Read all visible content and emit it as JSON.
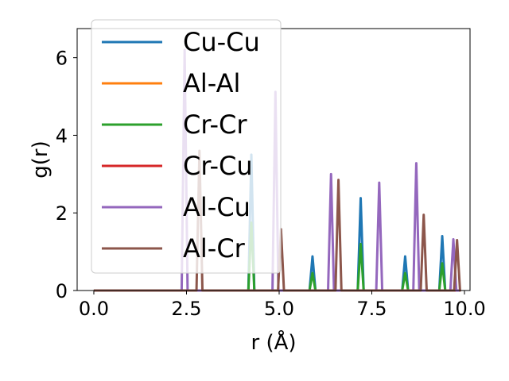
{
  "chart_data": {
    "type": "line",
    "xlabel": "r (Å)",
    "ylabel": "g(r)",
    "xlim": [
      -0.45,
      10.15
    ],
    "ylim": [
      0,
      6.75
    ],
    "xticks": [
      0.0,
      2.5,
      5.0,
      7.5,
      10.0
    ],
    "xtick_labels": [
      "0.0",
      "2.5",
      "5.0",
      "7.5",
      "10.0"
    ],
    "yticks": [
      0,
      2,
      4,
      6
    ],
    "ytick_labels": [
      "0",
      "2",
      "4",
      "6"
    ],
    "grid": false,
    "legend_position": "upper-left",
    "peak_half_width": 0.08,
    "x_max": 9.85,
    "series": [
      {
        "name": "Cu-Cu",
        "color": "#1f77b4",
        "peaks": [
          [
            4.25,
            3.5
          ],
          [
            5.9,
            0.88
          ],
          [
            7.2,
            2.38
          ],
          [
            8.4,
            0.88
          ],
          [
            9.4,
            1.4
          ]
        ]
      },
      {
        "name": "Al-Al",
        "color": "#ff7f0e",
        "peaks": []
      },
      {
        "name": "Cr-Cr",
        "color": "#2ca02c",
        "peaks": [
          [
            4.25,
            1.75
          ],
          [
            5.9,
            0.45
          ],
          [
            7.2,
            1.2
          ],
          [
            8.4,
            0.45
          ],
          [
            9.4,
            0.7
          ]
        ]
      },
      {
        "name": "Cr-Cu",
        "color": "#d62728",
        "peaks": []
      },
      {
        "name": "Al-Cu",
        "color": "#9467bd",
        "peaks": [
          [
            2.45,
            6.2
          ],
          [
            4.9,
            5.12
          ],
          [
            6.4,
            3.0
          ],
          [
            7.7,
            2.78
          ],
          [
            8.7,
            3.28
          ],
          [
            9.7,
            1.32
          ]
        ]
      },
      {
        "name": "Al-Cr",
        "color": "#8c564b",
        "peaks": [
          [
            2.85,
            3.6
          ],
          [
            5.05,
            1.58
          ],
          [
            6.6,
            2.85
          ],
          [
            8.9,
            1.95
          ],
          [
            9.8,
            1.3
          ]
        ]
      }
    ]
  }
}
